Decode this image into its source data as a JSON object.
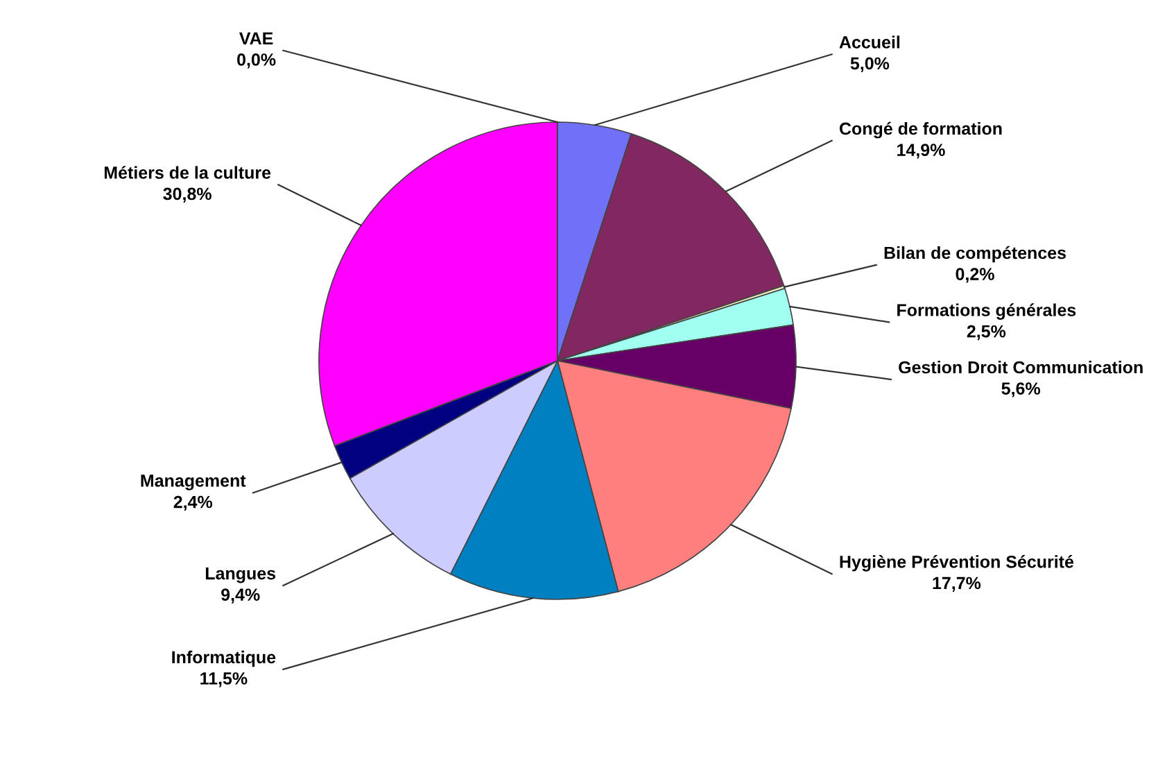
{
  "chart_data": {
    "type": "pie",
    "categories": [
      "Accueil",
      "Congé de formation",
      "Bilan de compétences",
      "Formations générales",
      "Gestion Droit Communication",
      "Hygiène Prévention Sécurité",
      "Informatique",
      "Langues",
      "Management",
      "Métiers de la culture",
      "VAE"
    ],
    "values": [
      5.0,
      14.9,
      0.2,
      2.5,
      5.6,
      17.7,
      11.5,
      9.4,
      2.4,
      30.8,
      0.0
    ],
    "value_labels": [
      "5,0%",
      "14,9%",
      "0,2%",
      "2,5%",
      "5,6%",
      "17,7%",
      "11,5%",
      "9,4%",
      "2,4%",
      "30,8%",
      "0,0%"
    ],
    "colors": [
      "#7070f8",
      "#80285f",
      "#f0f0c0",
      "#a0fff0",
      "#660066",
      "#ff7f7f",
      "#0080c0",
      "#ccccff",
      "#000080",
      "#ff00ff",
      "#ffffff"
    ],
    "legend": false
  }
}
